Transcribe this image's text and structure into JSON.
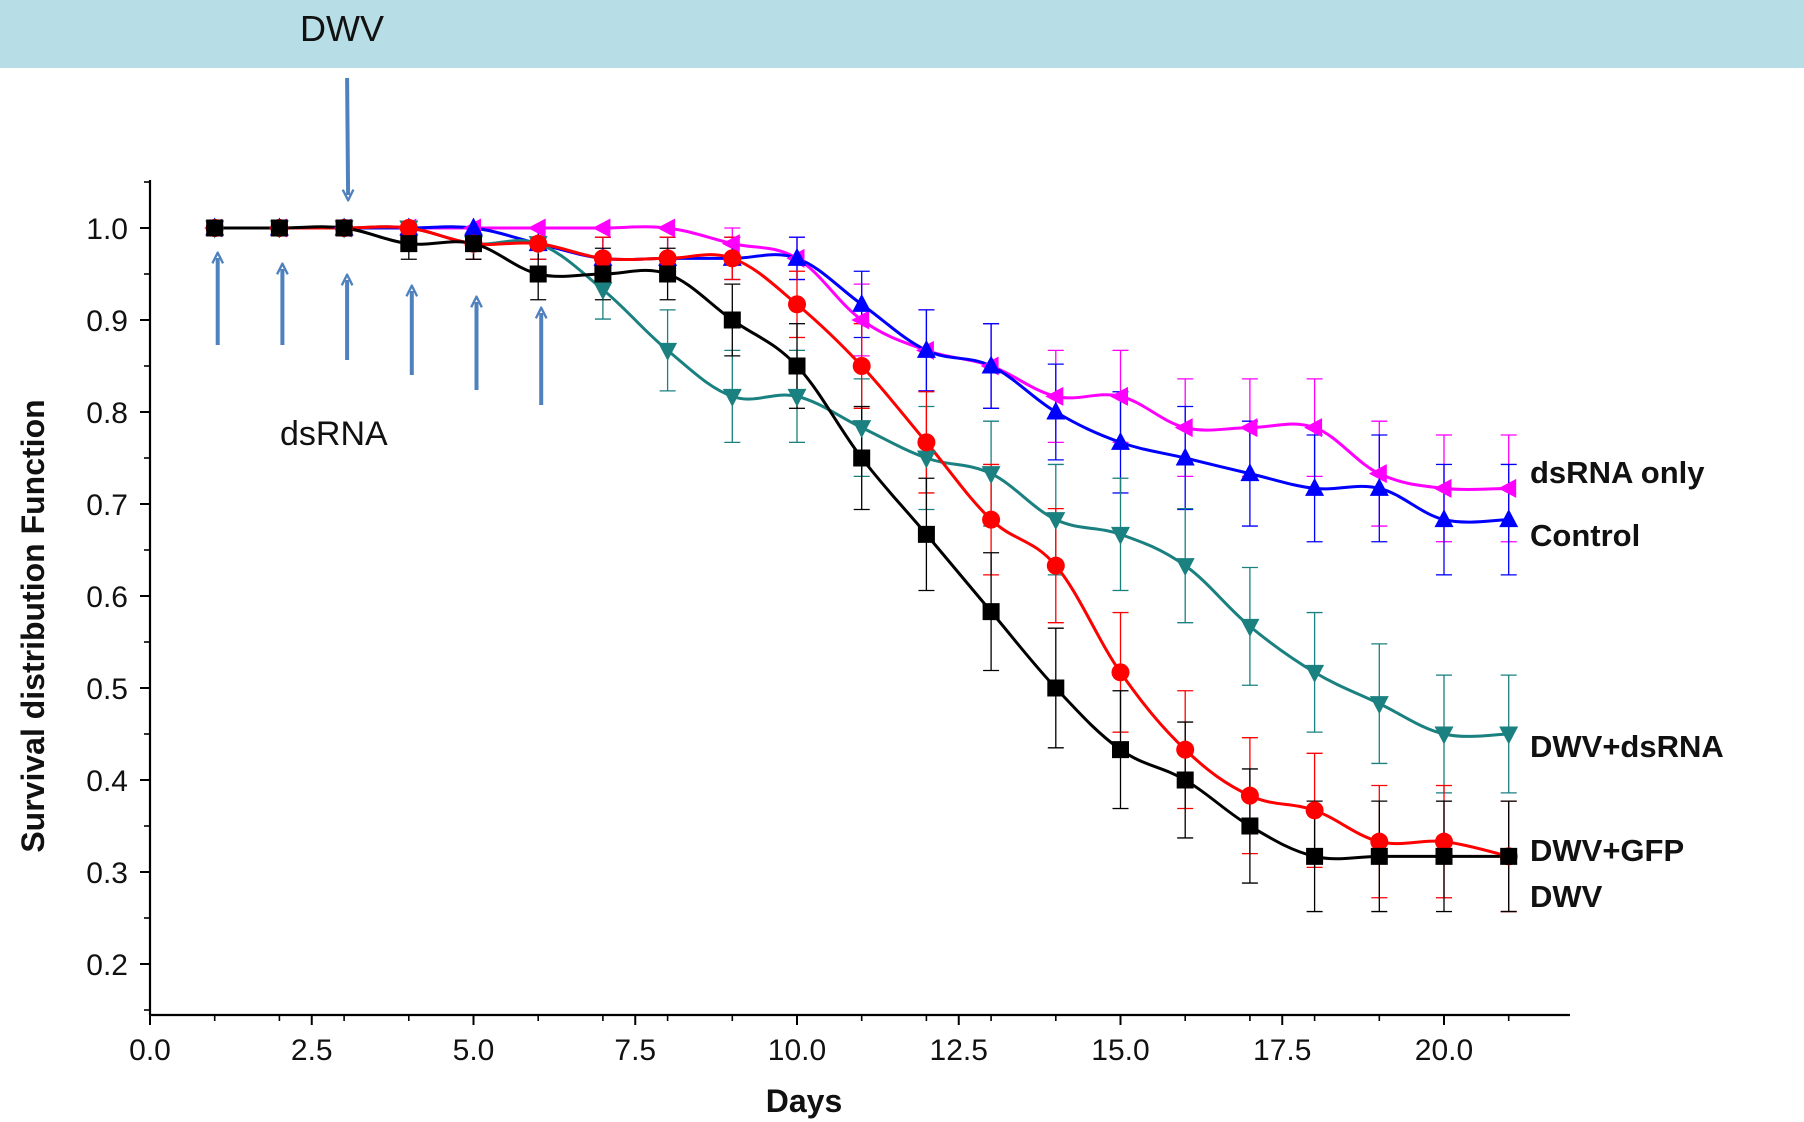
{
  "banner": {
    "label": "DWV"
  },
  "annotations": {
    "dsrna_label": "dsRNA"
  },
  "chart_data": {
    "type": "line",
    "title": "",
    "xlabel": "Days",
    "ylabel": "Survival distribution Function",
    "xlim": [
      0,
      21.5
    ],
    "ylim": [
      0.15,
      1.05
    ],
    "xticks": [
      "0.0",
      "2.5",
      "5.0",
      "7.5",
      "10.0",
      "12.5",
      "15.0",
      "17.5",
      "20.0"
    ],
    "yticks": [
      "0.2",
      "0.3",
      "0.4",
      "0.5",
      "0.6",
      "0.7",
      "0.8",
      "0.9",
      "1.0"
    ],
    "dwv_arrow_day": 3,
    "dsrna_arrow_days": [
      1,
      2,
      3,
      4,
      5,
      6
    ],
    "x": [
      1,
      2,
      3,
      4,
      5,
      6,
      7,
      8,
      9,
      10,
      11,
      12,
      13,
      14,
      15,
      16,
      17,
      18,
      19,
      20,
      21
    ],
    "series": [
      {
        "name": "dsRNA only",
        "color": "#ff00ff",
        "marker": "triangle-left",
        "values": [
          1.0,
          1.0,
          1.0,
          1.0,
          1.0,
          1.0,
          1.0,
          1.0,
          0.983,
          0.967,
          0.9,
          0.867,
          0.85,
          0.817,
          0.817,
          0.783,
          0.783,
          0.783,
          0.733,
          0.717,
          0.717
        ],
        "errors": [
          0,
          0,
          0,
          0,
          0,
          0,
          0,
          0,
          0.017,
          0.023,
          0.039,
          0.044,
          0.046,
          0.05,
          0.05,
          0.053,
          0.053,
          0.053,
          0.057,
          0.058,
          0.058
        ]
      },
      {
        "name": "Control",
        "color": "#0000ff",
        "marker": "triangle-up",
        "values": [
          1.0,
          1.0,
          1.0,
          1.0,
          1.0,
          0.983,
          0.967,
          0.967,
          0.967,
          0.967,
          0.917,
          0.867,
          0.85,
          0.8,
          0.767,
          0.75,
          0.733,
          0.717,
          0.717,
          0.683,
          0.683
        ],
        "errors": [
          0,
          0,
          0,
          0,
          0,
          0.017,
          0.023,
          0.023,
          0.023,
          0.023,
          0.036,
          0.044,
          0.046,
          0.052,
          0.055,
          0.056,
          0.057,
          0.058,
          0.058,
          0.06,
          0.06
        ]
      },
      {
        "name": "DWV+dsRNA",
        "color": "#1a8080",
        "marker": "triangle-down",
        "values": [
          1.0,
          1.0,
          1.0,
          1.0,
          0.983,
          0.983,
          0.933,
          0.867,
          0.817,
          0.817,
          0.783,
          0.75,
          0.733,
          0.683,
          0.667,
          0.633,
          0.567,
          0.517,
          0.483,
          0.45,
          0.45
        ],
        "errors": [
          0,
          0,
          0,
          0,
          0.017,
          0.017,
          0.032,
          0.044,
          0.05,
          0.05,
          0.053,
          0.056,
          0.057,
          0.06,
          0.061,
          0.062,
          0.064,
          0.065,
          0.065,
          0.064,
          0.064
        ]
      },
      {
        "name": "DWV+GFP",
        "color": "#ff0000",
        "marker": "circle",
        "values": [
          1.0,
          1.0,
          1.0,
          1.0,
          0.983,
          0.983,
          0.967,
          0.967,
          0.967,
          0.917,
          0.85,
          0.767,
          0.683,
          0.633,
          0.517,
          0.433,
          0.383,
          0.367,
          0.333,
          0.333,
          0.317
        ],
        "errors": [
          0,
          0,
          0,
          0,
          0.017,
          0.017,
          0.023,
          0.023,
          0.023,
          0.036,
          0.046,
          0.055,
          0.06,
          0.062,
          0.065,
          0.064,
          0.063,
          0.062,
          0.061,
          0.061,
          0.06
        ]
      },
      {
        "name": "DWV",
        "color": "#000000",
        "marker": "square",
        "values": [
          1.0,
          1.0,
          1.0,
          0.983,
          0.983,
          0.95,
          0.95,
          0.95,
          0.9,
          0.85,
          0.75,
          0.667,
          0.583,
          0.5,
          0.433,
          0.4,
          0.35,
          0.317,
          0.317,
          0.317,
          0.317
        ],
        "errors": [
          0,
          0,
          0,
          0.017,
          0.017,
          0.028,
          0.028,
          0.028,
          0.039,
          0.046,
          0.056,
          0.061,
          0.064,
          0.065,
          0.064,
          0.063,
          0.062,
          0.06,
          0.06,
          0.06,
          0.06
        ]
      }
    ]
  }
}
